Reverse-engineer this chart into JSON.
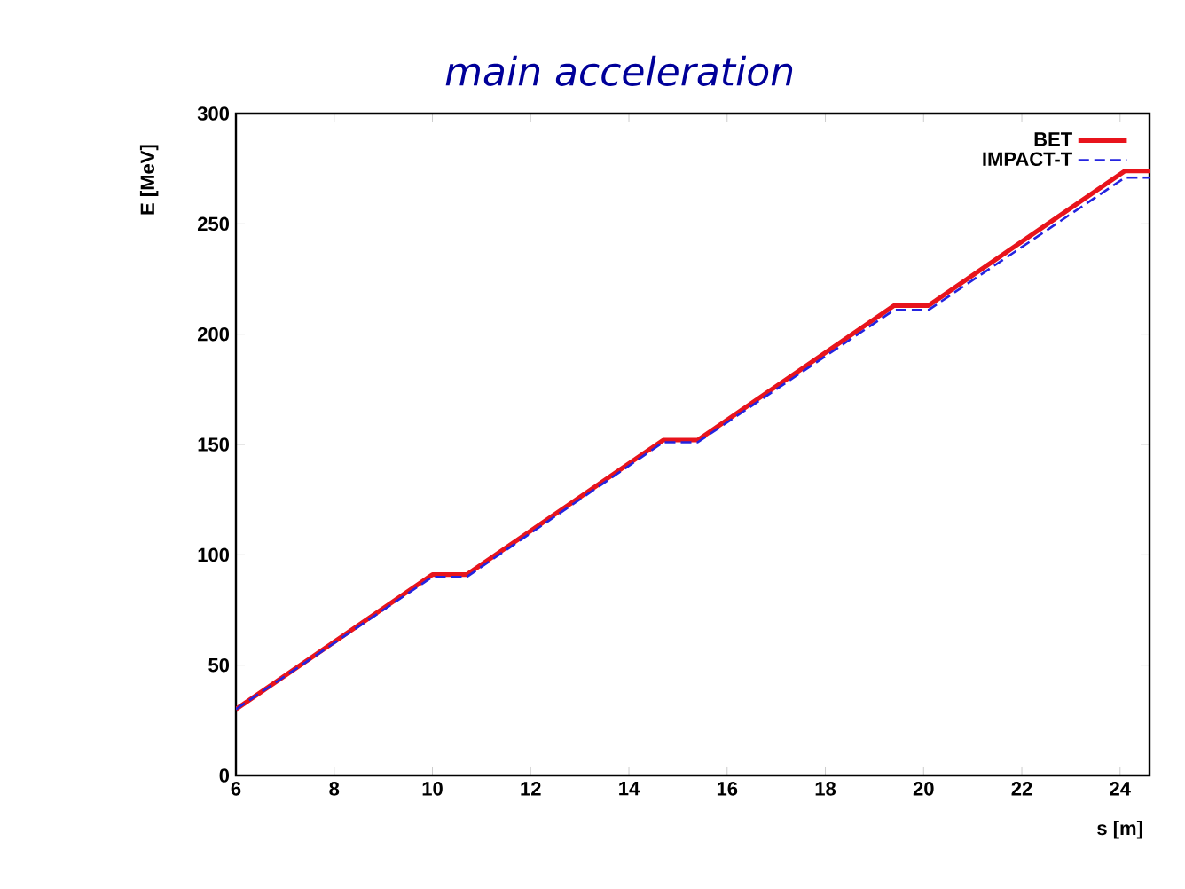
{
  "chart_data": {
    "type": "line",
    "title": "main acceleration",
    "xlabel": "s [m]",
    "ylabel": "E [MeV]",
    "xlim": [
      6,
      24.6
    ],
    "xticks": [
      6,
      8,
      10,
      12,
      14,
      16,
      18,
      20,
      22,
      24
    ],
    "ylim": [
      0,
      300
    ],
    "yticks": [
      0,
      50,
      100,
      150,
      200,
      250,
      300
    ],
    "legend": "top right",
    "grid": false,
    "series": [
      {
        "name": "BET",
        "color": "#e8141c",
        "line_style": "solid",
        "x": [
          6,
          10,
          10.7,
          14.7,
          15.4,
          19.4,
          20.1,
          24.1,
          24.6
        ],
        "values": [
          30,
          91,
          91,
          152,
          152,
          213,
          213,
          274,
          274
        ]
      },
      {
        "name": "IMPACT-T",
        "color": "#2424e0",
        "line_style": "dashed",
        "x": [
          6,
          10,
          10.7,
          14.7,
          15.4,
          19.4,
          20.1,
          24.1,
          24.6
        ],
        "values": [
          30,
          90,
          90,
          151,
          151,
          211,
          211,
          271,
          271
        ]
      }
    ]
  }
}
